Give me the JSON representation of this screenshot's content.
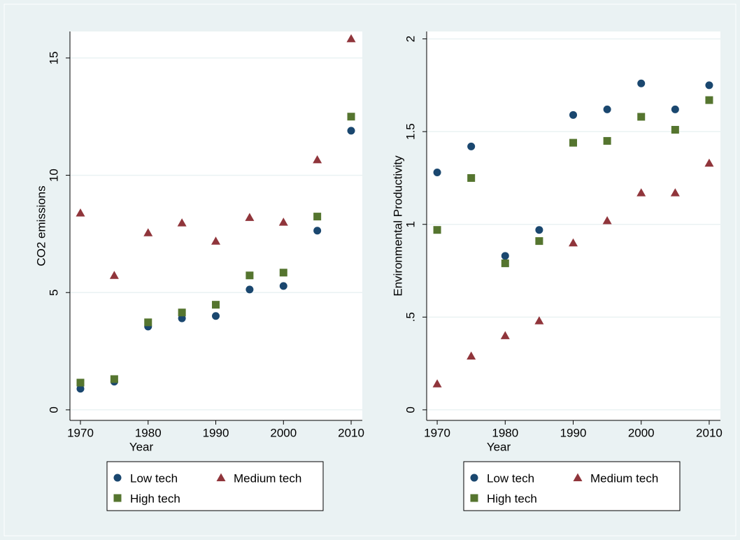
{
  "chart_data": [
    {
      "type": "scatter",
      "y_label": "CO2 emissions",
      "x_label": "Year",
      "x": [
        1970,
        1975,
        1980,
        1985,
        1990,
        1995,
        2000,
        2005,
        2010
      ],
      "series": [
        {
          "name": "Low tech",
          "color": "#1a476f",
          "marker": "circle",
          "values": [
            0.9,
            1.2,
            3.55,
            3.9,
            4.0,
            5.13,
            5.28,
            7.64,
            11.9
          ]
        },
        {
          "name": "Medium tech",
          "color": "#90353b",
          "marker": "triangle",
          "values": [
            8.39,
            5.73,
            7.55,
            7.97,
            7.19,
            8.2,
            8.0,
            10.66,
            15.82
          ]
        },
        {
          "name": "High tech",
          "color": "#55752f",
          "marker": "square",
          "values": [
            1.16,
            1.31,
            3.73,
            4.15,
            4.48,
            5.73,
            5.85,
            8.24,
            12.5
          ]
        }
      ],
      "xlim": [
        1968.45,
        2011.65
      ],
      "xticks": [
        1970,
        1980,
        1990,
        2000,
        2010
      ],
      "ylim": [
        -0.45,
        16.13
      ],
      "yticks": [
        0,
        5,
        10,
        15
      ],
      "grid": true
    },
    {
      "type": "scatter",
      "y_label": "Environmental Productivity",
      "x_label": "Year",
      "x": [
        1970,
        1975,
        1980,
        1985,
        1990,
        1995,
        2000,
        2005,
        2010
      ],
      "series": [
        {
          "name": "Low tech",
          "color": "#1a476f",
          "marker": "circle",
          "values": [
            1.28,
            1.42,
            0.83,
            0.97,
            1.59,
            1.62,
            1.76,
            1.62,
            1.75
          ]
        },
        {
          "name": "Medium tech",
          "color": "#90353b",
          "marker": "triangle",
          "values": [
            0.14,
            0.29,
            0.4,
            0.48,
            0.9,
            1.02,
            1.17,
            1.17,
            1.33
          ]
        },
        {
          "name": "High tech",
          "color": "#55752f",
          "marker": "square",
          "values": [
            0.97,
            1.25,
            0.79,
            0.91,
            1.44,
            1.45,
            1.58,
            1.51,
            1.67
          ]
        }
      ],
      "xlim": [
        1968.45,
        2011.65
      ],
      "xticks": [
        1970,
        1980,
        1990,
        2000,
        2010
      ],
      "ylim": [
        -0.057,
        2.04
      ],
      "yticks": [
        0,
        {
          "value": 0.5,
          "label": ".5"
        },
        1,
        1.5,
        2
      ],
      "grid": true
    }
  ]
}
